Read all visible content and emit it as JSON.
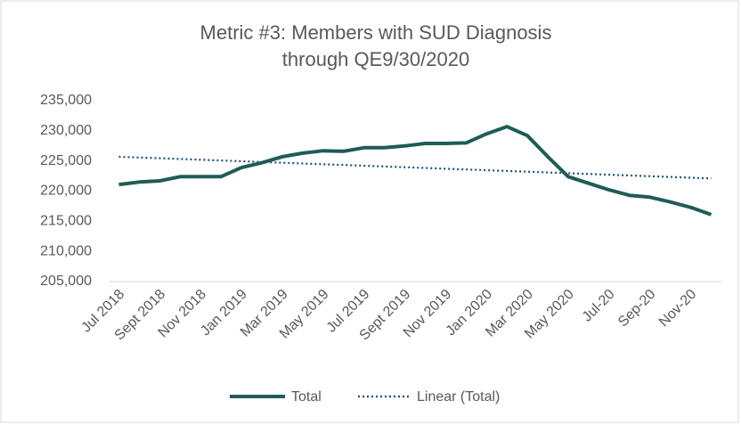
{
  "chart_data": {
    "type": "line",
    "title": [
      "Metric #3: Members with SUD Diagnosis",
      "through QE9/30/2020"
    ],
    "categories": [
      "Jul 2018",
      null,
      "Sept 2018",
      null,
      "Nov 2018",
      null,
      "Jan 2019",
      null,
      "Mar 2019",
      null,
      "May 2019",
      null,
      "Jul 2019",
      null,
      "Sept 2019",
      null,
      "Nov 2019",
      null,
      "Jan 2020",
      null,
      "Mar 2020",
      null,
      "May 2020",
      null,
      "Jul-20",
      null,
      "Sep-20",
      null,
      "Nov-20",
      null
    ],
    "series": [
      {
        "name": "Total",
        "color": "#1f5c55",
        "values": [
          221100,
          221500,
          221700,
          222400,
          222400,
          222400,
          223900,
          224700,
          225700,
          226300,
          226700,
          226600,
          227200,
          227200,
          227500,
          227900,
          227900,
          228000,
          229500,
          230700,
          229200,
          225700,
          222400,
          221300,
          220200,
          219300,
          219000,
          218200,
          217300,
          216100
        ]
      }
    ],
    "trendline": {
      "name": "Linear (Total)",
      "color": "#1f4e79",
      "start": 225700,
      "end": 222100
    },
    "ylim": [
      205000,
      235000
    ],
    "yticks": [
      {
        "value": 205000,
        "label": "205,000"
      },
      {
        "value": 210000,
        "label": "210,000"
      },
      {
        "value": 215000,
        "label": "215,000"
      },
      {
        "value": 220000,
        "label": "220,000"
      },
      {
        "value": 225000,
        "label": "225,000"
      },
      {
        "value": 230000,
        "label": "230,000"
      },
      {
        "value": 235000,
        "label": "235,000"
      }
    ],
    "grid": false
  }
}
